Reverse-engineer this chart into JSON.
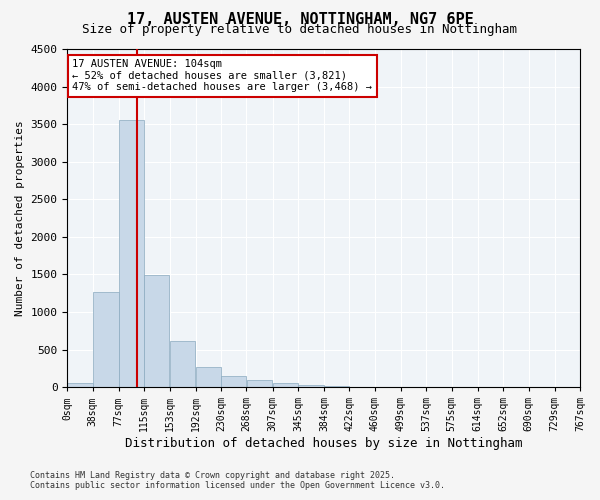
{
  "title_line1": "17, AUSTEN AVENUE, NOTTINGHAM, NG7 6PE",
  "title_line2": "Size of property relative to detached houses in Nottingham",
  "xlabel": "Distribution of detached houses by size in Nottingham",
  "ylabel": "Number of detached properties",
  "annotation_line1": "17 AUSTEN AVENUE: 104sqm",
  "annotation_line2": "← 52% of detached houses are smaller (3,821)",
  "annotation_line3": "47% of semi-detached houses are larger (3,468) →",
  "property_size": 104,
  "bin_edges": [
    0,
    38,
    77,
    115,
    153,
    192,
    230,
    268,
    307,
    345,
    384,
    422,
    460,
    499,
    537,
    575,
    614,
    652,
    690,
    729,
    767
  ],
  "bar_heights": [
    50,
    1270,
    3560,
    1490,
    620,
    270,
    155,
    95,
    55,
    35,
    20,
    8,
    3,
    1,
    0,
    0,
    0,
    0,
    0,
    0
  ],
  "bar_color": "#c8d8e8",
  "bar_edge_color": "#8aaabf",
  "vline_color": "#cc0000",
  "vline_x": 104,
  "ylim": [
    0,
    4500
  ],
  "yticks": [
    0,
    500,
    1000,
    1500,
    2000,
    2500,
    3000,
    3500,
    4000,
    4500
  ],
  "tick_labels": [
    "0sqm",
    "38sqm",
    "77sqm",
    "115sqm",
    "153sqm",
    "192sqm",
    "230sqm",
    "268sqm",
    "307sqm",
    "345sqm",
    "384sqm",
    "422sqm",
    "460sqm",
    "499sqm",
    "537sqm",
    "575sqm",
    "614sqm",
    "652sqm",
    "690sqm",
    "729sqm",
    "767sqm"
  ],
  "bg_color": "#f0f4f8",
  "grid_color": "#ffffff",
  "annotation_box_color": "#ffffff",
  "annotation_box_edge": "#cc0000",
  "footer_line1": "Contains HM Land Registry data © Crown copyright and database right 2025.",
  "footer_line2": "Contains public sector information licensed under the Open Government Licence v3.0."
}
